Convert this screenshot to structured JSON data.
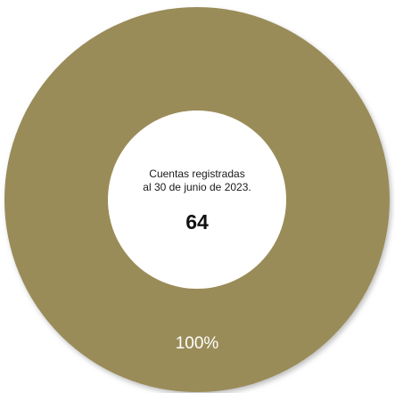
{
  "chart_data": {
    "type": "pie",
    "variant": "donut",
    "series": [
      {
        "value": 100,
        "label": "100%",
        "color": "#9a8c59"
      }
    ],
    "center_text": {
      "line1": "Cuentas registradas",
      "line2": "al 30 de junio de 2023.",
      "value": "64"
    },
    "legend": "none"
  },
  "colors": {
    "ring": "#9a8c59",
    "ring_shadow": "#bdbdbd",
    "label": "#ffffff"
  }
}
